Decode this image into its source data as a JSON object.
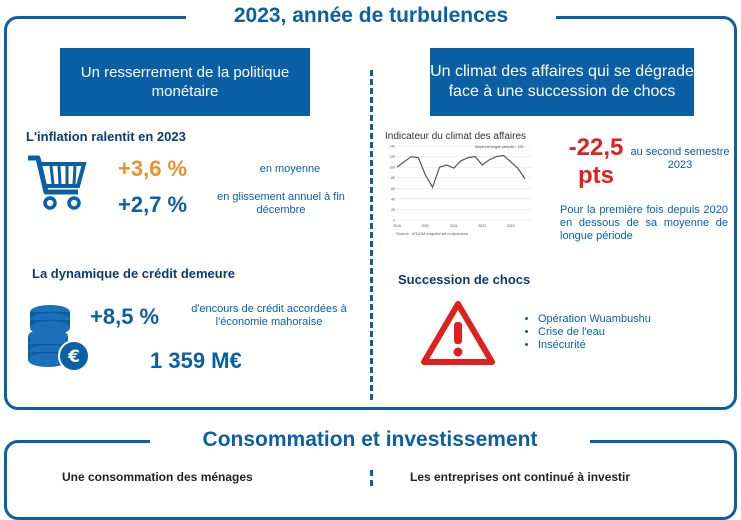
{
  "section1": {
    "title": "2023, année de turbulences",
    "left": {
      "box_label": "Un resserrement de la politique monétaire",
      "inflation": {
        "heading": "L'inflation ralentit en 2023",
        "stat1_value": "+3,6 %",
        "stat1_label": "en moyenne",
        "stat2_value": "+2,7 %",
        "stat2_label": "en glissement annuel à fin décembre"
      },
      "credit": {
        "heading": "La dynamique de crédit demeure",
        "stat_value": "+8,5 %",
        "stat_label": "d'encours de crédit accordées à l'économie mahoraise",
        "amount": "1 359 M€"
      }
    },
    "right": {
      "box_label": "Un climat des affaires qui se dégrade face à une succession de chocs",
      "chart_title": "Indicateur du climat des affaires",
      "chart_annotation": "Moyenne longue période = 100",
      "chart_source": "Source : IEDOM enquête de conjoncture",
      "big_value_line1": "-22,5",
      "big_value_line2": "pts",
      "big_value_label": "au second semestre 2023",
      "description": "Pour la première fois depuis 2020 en dessous de sa moyenne de longue période",
      "shocks": {
        "heading": "Succession de chocs",
        "items": [
          "Opération Wuambushu",
          "Crise de l'eau",
          "Insécurité"
        ]
      }
    }
  },
  "section2": {
    "title": "Consommation et investissement",
    "left_sub": "Une consommation des ménages",
    "right_sub": "Les entreprises ont continué à investir"
  },
  "chart_data": {
    "type": "line",
    "title": "Indicateur du climat des affaires",
    "x": [
      2019,
      2019.25,
      2019.5,
      2019.75,
      2020,
      2020.25,
      2020.5,
      2020.75,
      2021,
      2021.25,
      2021.5,
      2021.75,
      2022,
      2022.25,
      2022.5,
      2022.75,
      2023,
      2023.25,
      2023.5
    ],
    "xticks": [
      "2019",
      "2020",
      "2021",
      "2022",
      "2023"
    ],
    "series": [
      {
        "values": [
          100,
          110,
          120,
          118,
          85,
          62,
          100,
          104,
          98,
          112,
          118,
          120,
          104,
          114,
          120,
          122,
          110,
          98,
          78
        ]
      }
    ],
    "ylim": [
      0,
      140
    ],
    "yticks": [
      0,
      20,
      40,
      60,
      80,
      100,
      120,
      140
    ],
    "grid": true,
    "colors": {
      "line": "#555555"
    }
  },
  "colors": {
    "primary": "#0b5fa5",
    "accent_orange": "#e8912e",
    "accent_red": "#e0201e"
  },
  "icons": [
    "shopping-cart-icon",
    "coins-euro-icon",
    "warning-triangle-icon"
  ]
}
